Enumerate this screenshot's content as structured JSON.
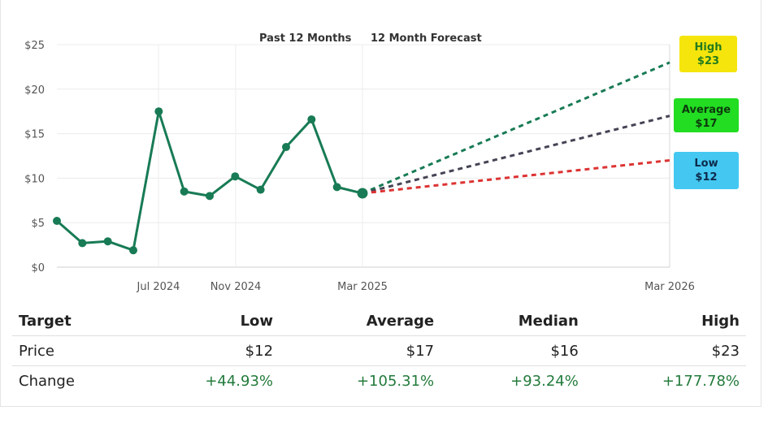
{
  "chart_data": {
    "type": "line",
    "title": "",
    "legend": [
      "Past 12 Months",
      "12 Month Forecast"
    ],
    "x_ticks": [
      "Jul 2024",
      "Nov 2024",
      "Mar 2025",
      "Mar 2026"
    ],
    "y_ticks": [
      "$0",
      "$5",
      "$10",
      "$15",
      "$20",
      "$25"
    ],
    "ylim": [
      0,
      25
    ],
    "series": [
      {
        "name": "Past 12 Months",
        "color": "#187b55",
        "x": [
          "2024-04",
          "2024-05",
          "2024-06",
          "2024-06b",
          "2024-07",
          "2024-08",
          "2024-09",
          "2024-10",
          "2024-11",
          "2024-12",
          "2025-01",
          "2025-02",
          "2025-03"
        ],
        "values": [
          5.2,
          2.7,
          2.9,
          1.9,
          17.5,
          8.5,
          8.0,
          10.2,
          8.7,
          13.5,
          16.6,
          9.0,
          8.3
        ]
      }
    ],
    "forecast": [
      {
        "name": "High",
        "label": "High",
        "value_label": "$23",
        "start": 8.3,
        "end": 23,
        "color": "#187b55",
        "badge_color": "#f5e50c"
      },
      {
        "name": "Average",
        "label": "Average",
        "value_label": "$17",
        "start": 8.3,
        "end": 17,
        "color": "#444455",
        "badge_color": "#22dd22"
      },
      {
        "name": "Low",
        "label": "Low",
        "value_label": "$12",
        "start": 8.3,
        "end": 12,
        "color": "#dd3333",
        "badge_color": "#44c8f2"
      }
    ]
  },
  "table": {
    "headers": [
      "Target",
      "Low",
      "Average",
      "Median",
      "High"
    ],
    "rows": [
      {
        "label": "Price",
        "low": "$12",
        "average": "$17",
        "median": "$16",
        "high": "$23"
      },
      {
        "label": "Change",
        "low": "+44.93%",
        "average": "+105.31%",
        "median": "+93.24%",
        "high": "+177.78%"
      }
    ]
  }
}
